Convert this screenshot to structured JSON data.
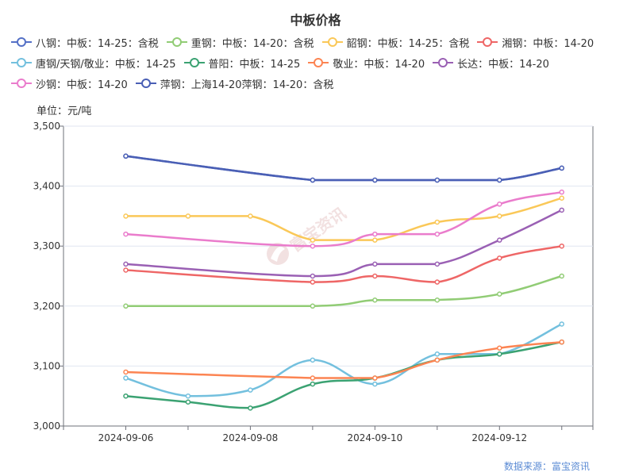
{
  "chart_data": {
    "type": "line",
    "title": "中板价格",
    "unit_label": "单位：元/吨",
    "source": "数据来源：富宝资讯",
    "watermark": "富宝资讯",
    "x_tick_labels": [
      "2024-09-06",
      "2024-09-08",
      "2024-09-10",
      "2024-09-12"
    ],
    "x": [
      "2024-09-06",
      "2024-09-07",
      "2024-09-08",
      "2024-09-09",
      "2024-09-10",
      "2024-09-11",
      "2024-09-12",
      "2024-09-13"
    ],
    "xlim": [
      "2024-09-05",
      "2024-09-13.5"
    ],
    "ylim": [
      3000,
      3500
    ],
    "y_ticks": [
      3000,
      3100,
      3200,
      3300,
      3400,
      3500
    ],
    "y_tick_labels": [
      "3,000",
      "3,100",
      "3,200",
      "3,300",
      "3,400",
      "3,500"
    ],
    "grid": true,
    "legend_position": "top",
    "series": [
      {
        "name": "八钢：中板：14-25：含税",
        "color": "#5470c6",
        "points": [
          [
            "2024-09-06",
            3450
          ],
          [
            "2024-09-09",
            3410
          ],
          [
            "2024-09-10",
            3410
          ],
          [
            "2024-09-11",
            3410
          ],
          [
            "2024-09-12",
            3410
          ],
          [
            "2024-09-13",
            3430
          ]
        ]
      },
      {
        "name": "重钢：中板：14-20：含税",
        "color": "#91cc75",
        "points": [
          [
            "2024-09-06",
            3200
          ],
          [
            "2024-09-09",
            3200
          ],
          [
            "2024-09-10",
            3210
          ],
          [
            "2024-09-11",
            3210
          ],
          [
            "2024-09-12",
            3220
          ],
          [
            "2024-09-13",
            3250
          ]
        ]
      },
      {
        "name": "韶钢：中板：14-25：含税",
        "color": "#fac858",
        "points": [
          [
            "2024-09-06",
            3350
          ],
          [
            "2024-09-07",
            3350
          ],
          [
            "2024-09-08",
            3350
          ],
          [
            "2024-09-09",
            3310
          ],
          [
            "2024-09-10",
            3310
          ],
          [
            "2024-09-11",
            3340
          ],
          [
            "2024-09-12",
            3350
          ],
          [
            "2024-09-13",
            3380
          ]
        ]
      },
      {
        "name": "湘钢：中板：14-20",
        "color": "#ee6666",
        "points": [
          [
            "2024-09-06",
            3260
          ],
          [
            "2024-09-09",
            3240
          ],
          [
            "2024-09-10",
            3250
          ],
          [
            "2024-09-11",
            3240
          ],
          [
            "2024-09-12",
            3280
          ],
          [
            "2024-09-13",
            3300
          ]
        ]
      },
      {
        "name": "唐钢/天钢/敬业：中板：14-25",
        "color": "#73c0de",
        "points": [
          [
            "2024-09-06",
            3080
          ],
          [
            "2024-09-07",
            3050
          ],
          [
            "2024-09-08",
            3060
          ],
          [
            "2024-09-09",
            3110
          ],
          [
            "2024-09-10",
            3070
          ],
          [
            "2024-09-11",
            3120
          ],
          [
            "2024-09-12",
            3120
          ],
          [
            "2024-09-13",
            3170
          ]
        ]
      },
      {
        "name": "普阳：中板：14-25",
        "color": "#3ba272",
        "points": [
          [
            "2024-09-06",
            3050
          ],
          [
            "2024-09-07",
            3040
          ],
          [
            "2024-09-08",
            3030
          ],
          [
            "2024-09-09",
            3070
          ],
          [
            "2024-09-10",
            3080
          ],
          [
            "2024-09-11",
            3110
          ],
          [
            "2024-09-12",
            3120
          ],
          [
            "2024-09-13",
            3140
          ]
        ]
      },
      {
        "name": "敬业：中板：14-20",
        "color": "#fc8452",
        "points": [
          [
            "2024-09-06",
            3090
          ],
          [
            "2024-09-09",
            3080
          ],
          [
            "2024-09-10",
            3080
          ],
          [
            "2024-09-11",
            3110
          ],
          [
            "2024-09-12",
            3130
          ],
          [
            "2024-09-13",
            3140
          ]
        ]
      },
      {
        "name": "长达：中板：14-20",
        "color": "#9a60b4",
        "points": [
          [
            "2024-09-06",
            3270
          ],
          [
            "2024-09-09",
            3250
          ],
          [
            "2024-09-10",
            3270
          ],
          [
            "2024-09-11",
            3270
          ],
          [
            "2024-09-12",
            3310
          ],
          [
            "2024-09-13",
            3360
          ]
        ]
      },
      {
        "name": "沙钢：中板：14-20",
        "color": "#ea7ccc",
        "points": [
          [
            "2024-09-06",
            3320
          ],
          [
            "2024-09-09",
            3300
          ],
          [
            "2024-09-10",
            3320
          ],
          [
            "2024-09-11",
            3320
          ],
          [
            "2024-09-12",
            3370
          ],
          [
            "2024-09-13",
            3390
          ]
        ]
      },
      {
        "name": "萍钢：上海14-20萍钢：14-20：含税",
        "color": "#4a5fb5",
        "points": [
          [
            "2024-09-06",
            3450
          ],
          [
            "2024-09-09",
            3410
          ],
          [
            "2024-09-10",
            3410
          ],
          [
            "2024-09-11",
            3410
          ],
          [
            "2024-09-12",
            3410
          ],
          [
            "2024-09-13",
            3430
          ]
        ]
      }
    ]
  }
}
